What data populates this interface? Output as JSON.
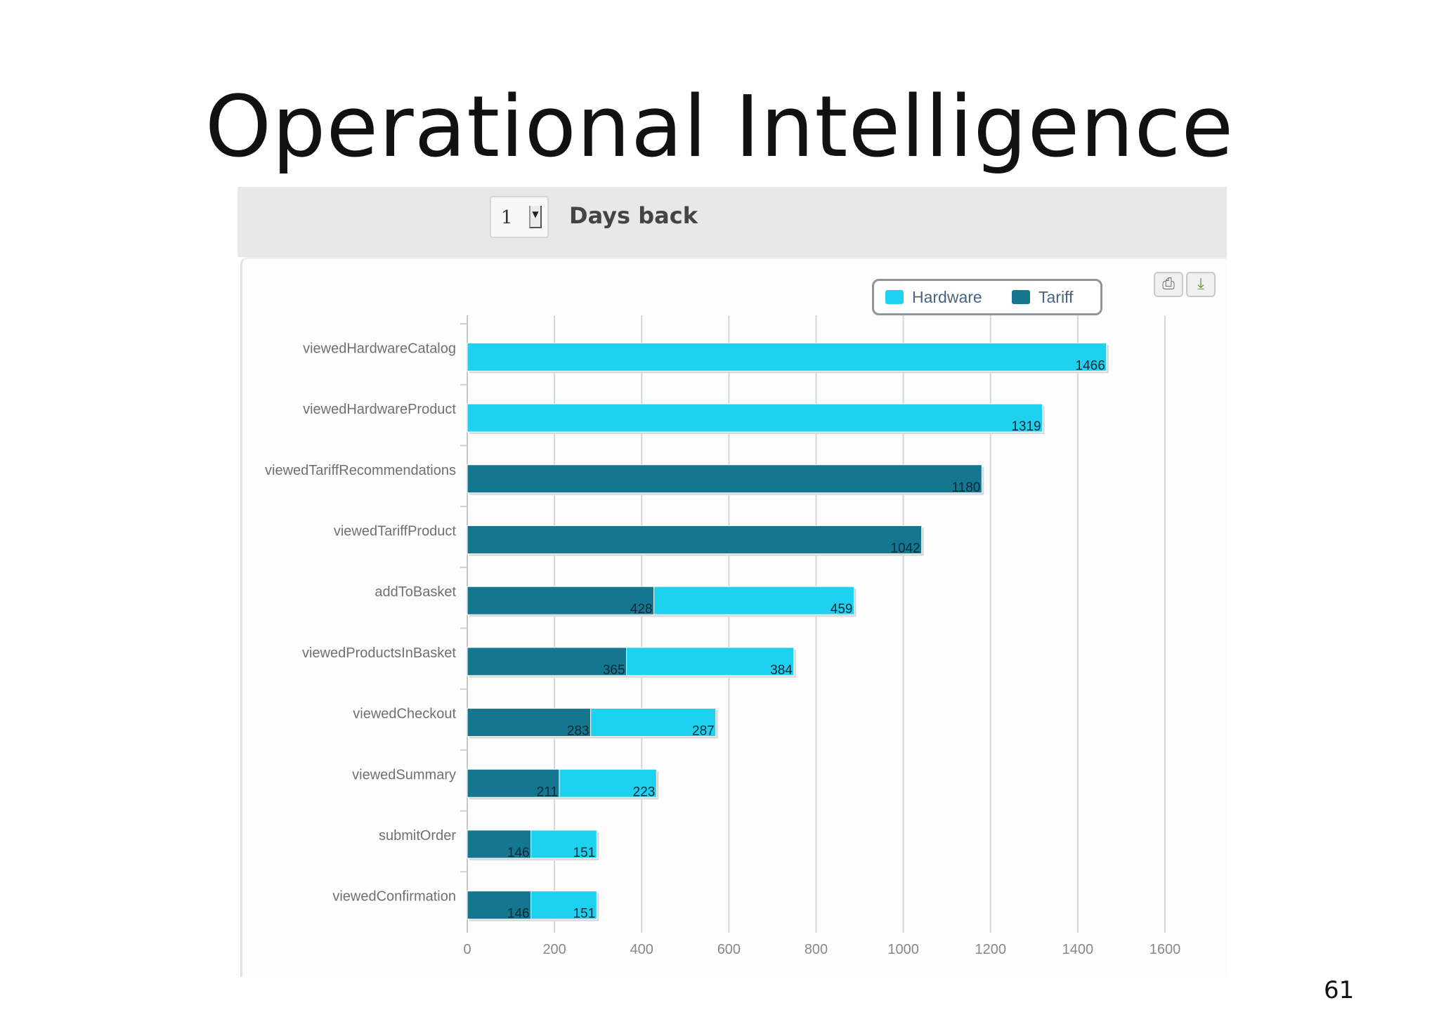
{
  "slide": {
    "title": "Operational Intelligence",
    "page_number": "61"
  },
  "toolbar": {
    "days_value": "1",
    "days_label": "Days back"
  },
  "chart_data": {
    "type": "bar",
    "orientation": "horizontal",
    "stacked": true,
    "categories": [
      "viewedHardwareCatalog",
      "viewedHardwareProduct",
      "viewedTariffRecommendations",
      "viewedTariffProduct",
      "addToBasket",
      "viewedProductsInBasket",
      "viewedCheckout",
      "viewedSummary",
      "submitOrder",
      "viewedConfirmation"
    ],
    "series": [
      {
        "name": "Hardware",
        "color": "#1ed2ef",
        "values": [
          1466,
          1319,
          null,
          null,
          459,
          384,
          287,
          223,
          151,
          151
        ]
      },
      {
        "name": "Tariff",
        "color": "#15768f",
        "values": [
          null,
          null,
          1180,
          1042,
          428,
          365,
          283,
          211,
          146,
          146
        ]
      }
    ],
    "stack_order": [
      "Tariff",
      "Hardware"
    ],
    "xlim": [
      0,
      1600
    ],
    "x_ticks": [
      0,
      200,
      400,
      600,
      800,
      1000,
      1200,
      1400,
      1600
    ],
    "grid": "vertical",
    "legend_position": "top-right"
  },
  "legend": {
    "hardware_label": "Hardware",
    "tariff_label": "Tariff"
  },
  "icons": {
    "print": "print-icon",
    "download": "download-icon"
  }
}
